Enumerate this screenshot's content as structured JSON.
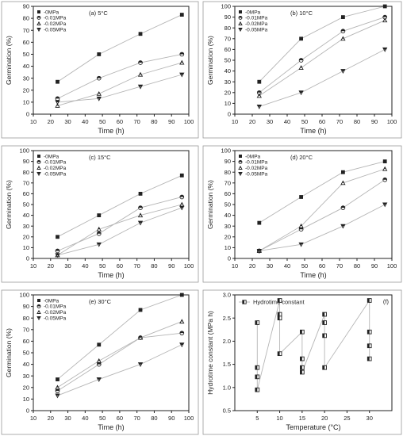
{
  "chart_data": [
    {
      "type": "line",
      "panel_label": "(a) 5°C",
      "xlabel": "Time (h)",
      "ylabel": "Germination (%)",
      "xlim": [
        10,
        100
      ],
      "xticks": [
        10,
        20,
        30,
        40,
        50,
        60,
        70,
        80,
        90,
        100
      ],
      "ylim": [
        0,
        90
      ],
      "yticks": [
        0,
        10,
        20,
        30,
        40,
        50,
        60,
        70,
        80,
        90
      ],
      "legend_position": "top-left",
      "x": [
        24,
        48,
        72,
        96
      ],
      "series": [
        {
          "name": "-0MPa",
          "marker": "square",
          "values": [
            27,
            50,
            67,
            83
          ]
        },
        {
          "name": "-0.01MPa",
          "marker": "circle",
          "values": [
            13,
            30,
            43,
            50
          ]
        },
        {
          "name": "-0.02MPa",
          "marker": "triangle-up",
          "values": [
            7,
            17,
            33,
            43
          ]
        },
        {
          "name": "-0.05MPa",
          "marker": "triangle-down",
          "values": [
            10,
            13,
            23,
            33
          ]
        }
      ]
    },
    {
      "type": "line",
      "panel_label": "(b) 10°C",
      "xlabel": "Time (h)",
      "ylabel": "Germination (%)",
      "xlim": [
        10,
        100
      ],
      "xticks": [
        10,
        20,
        30,
        40,
        50,
        60,
        70,
        80,
        90,
        100
      ],
      "ylim": [
        0,
        100
      ],
      "yticks": [
        0,
        10,
        20,
        30,
        40,
        50,
        60,
        70,
        80,
        90,
        100
      ],
      "legend_position": "top-left",
      "x": [
        24,
        48,
        72,
        96
      ],
      "series": [
        {
          "name": "-0MPa",
          "marker": "square",
          "values": [
            30,
            70,
            90,
            100
          ]
        },
        {
          "name": "-0.01MPa",
          "marker": "circle",
          "values": [
            20,
            50,
            77,
            90
          ]
        },
        {
          "name": "-0.02MPa",
          "marker": "triangle-up",
          "values": [
            17,
            43,
            70,
            87
          ]
        },
        {
          "name": "-0.05MPa",
          "marker": "triangle-down",
          "values": [
            7,
            20,
            40,
            60
          ]
        }
      ]
    },
    {
      "type": "line",
      "panel_label": "(c) 15°C",
      "xlabel": "Time (h)",
      "ylabel": "Germination (%)",
      "xlim": [
        10,
        100
      ],
      "xticks": [
        10,
        20,
        30,
        40,
        50,
        60,
        70,
        80,
        90,
        100
      ],
      "ylim": [
        0,
        100
      ],
      "yticks": [
        0,
        10,
        20,
        30,
        40,
        50,
        60,
        70,
        80,
        90,
        100
      ],
      "legend_position": "top-left",
      "x": [
        24,
        48,
        72,
        96
      ],
      "series": [
        {
          "name": "-0MPa",
          "marker": "square",
          "values": [
            20,
            40,
            60,
            77
          ]
        },
        {
          "name": "-0.01MPa",
          "marker": "circle",
          "values": [
            7,
            23,
            47,
            57
          ]
        },
        {
          "name": "-0.02MPa",
          "marker": "triangle-up",
          "values": [
            3,
            27,
            40,
            50
          ]
        },
        {
          "name": "-0.05MPa",
          "marker": "triangle-down",
          "values": [
            3,
            13,
            33,
            47
          ]
        }
      ]
    },
    {
      "type": "line",
      "panel_label": "(d) 20°C",
      "xlabel": "Time (h)",
      "ylabel": "Germination (%)",
      "xlim": [
        10,
        100
      ],
      "xticks": [
        10,
        20,
        30,
        40,
        50,
        60,
        70,
        80,
        90,
        100
      ],
      "ylim": [
        0,
        100
      ],
      "yticks": [
        0,
        10,
        20,
        30,
        40,
        50,
        60,
        70,
        80,
        90,
        100
      ],
      "legend_position": "top-left",
      "x": [
        24,
        48,
        72,
        96
      ],
      "series": [
        {
          "name": "-0MPa",
          "marker": "square",
          "values": [
            33,
            57,
            80,
            90
          ]
        },
        {
          "name": "-0.01MPa",
          "marker": "circle",
          "values": [
            7,
            27,
            47,
            73
          ]
        },
        {
          "name": "-0.02MPa",
          "marker": "triangle-up",
          "values": [
            7,
            30,
            70,
            83
          ]
        },
        {
          "name": "-0.05MPa",
          "marker": "triangle-down",
          "values": [
            7,
            13,
            30,
            50
          ]
        }
      ]
    },
    {
      "type": "line",
      "panel_label": "(e) 30°C",
      "xlabel": "Time (h)",
      "ylabel": "Germination (%)",
      "xlim": [
        10,
        100
      ],
      "xticks": [
        10,
        20,
        30,
        40,
        50,
        60,
        70,
        80,
        90,
        100
      ],
      "ylim": [
        0,
        100
      ],
      "yticks": [
        0,
        10,
        20,
        30,
        40,
        50,
        60,
        70,
        80,
        90,
        100
      ],
      "legend_position": "top-left",
      "x": [
        24,
        48,
        72,
        96
      ],
      "series": [
        {
          "name": "-0MPa",
          "marker": "square",
          "values": [
            27,
            57,
            87,
            100
          ]
        },
        {
          "name": "-0.01MPa",
          "marker": "circle",
          "values": [
            17,
            40,
            63,
            67
          ]
        },
        {
          "name": "-0.02MPa",
          "marker": "triangle-up",
          "values": [
            20,
            43,
            63,
            77
          ]
        },
        {
          "name": "-0.05MPa",
          "marker": "triangle-down",
          "values": [
            13,
            27,
            40,
            57
          ]
        }
      ]
    },
    {
      "type": "line",
      "panel_label": "(f)",
      "xlabel": "Temperature (°C)",
      "ylabel": "Hydrotime constant (MPa h)",
      "xlim": [
        0,
        35
      ],
      "xticks": [
        5,
        10,
        15,
        20,
        25,
        30
      ],
      "ylim": [
        0.5,
        3.0
      ],
      "yticks": [
        0.5,
        1.0,
        1.5,
        2.0,
        2.5,
        3.0
      ],
      "ytick_labels": [
        "0.5",
        "1.0",
        "1.5",
        "2.0",
        "2.5",
        "3.0"
      ],
      "legend_position": "top-left",
      "series": [
        {
          "name": "Hydrotime constant",
          "marker": "half-square",
          "points": [
            [
              5,
              2.4
            ],
            [
              5,
              1.43
            ],
            [
              5,
              1.23
            ],
            [
              5,
              0.95
            ],
            [
              10,
              2.88
            ],
            [
              10,
              2.58
            ],
            [
              10,
              2.5
            ],
            [
              10,
              1.73
            ],
            [
              15,
              2.2
            ],
            [
              15,
              1.62
            ],
            [
              15,
              1.43
            ],
            [
              15,
              1.33
            ],
            [
              20,
              2.58
            ],
            [
              20,
              2.4
            ],
            [
              20,
              2.12
            ],
            [
              20,
              1.43
            ],
            [
              30,
              2.88
            ],
            [
              30,
              2.2
            ],
            [
              30,
              1.9
            ],
            [
              30,
              1.62
            ]
          ]
        }
      ]
    }
  ],
  "colors": {
    "line": "#b5b5b5",
    "marker": "#222222",
    "axis": "#222222",
    "panel_border": "#9a9a9a"
  }
}
